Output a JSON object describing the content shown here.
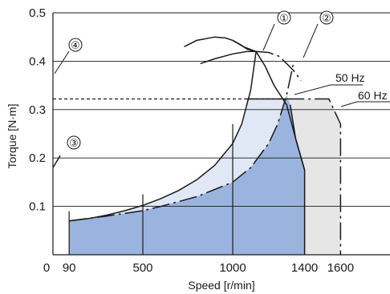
{
  "chart_data": {
    "type": "area",
    "title": "",
    "xlabel": "Speed [r/min]",
    "ylabel": "Torque [N·m]",
    "xlim": [
      0,
      1800
    ],
    "ylim": [
      0,
      0.5
    ],
    "x_ticks": [
      0,
      90,
      500,
      1000,
      1400,
      1600
    ],
    "x_tick_labels": [
      "0",
      "90",
      "500",
      "1000",
      "1400",
      "1600"
    ],
    "y_ticks": [
      0.1,
      0.2,
      0.3,
      0.4,
      0.5
    ],
    "y_tick_labels": [
      "0.1",
      "0.2",
      "0.3",
      "0.4",
      "0.5"
    ],
    "grid": "horizontal",
    "colors": {
      "continuous_region": "#9bb4df",
      "region_50hz": "#e0e7f5",
      "region_60hz": "#e6e6e6",
      "line": "#1a1a1a"
    },
    "series": [
      {
        "name": "",
        "label": "①",
        "style": "solid",
        "x": [
          730,
          800,
          900,
          960,
          1000,
          1040,
          1080,
          1130
        ],
        "y": [
          0.43,
          0.443,
          0.45,
          0.448,
          0.443,
          0.435,
          0.425,
          0.42
        ]
      },
      {
        "name": "",
        "label": "②",
        "style": "solid",
        "x": [
          820,
          900,
          1000,
          1080,
          1130
        ],
        "y": [
          0.395,
          0.405,
          0.415,
          0.42,
          0.42
        ]
      },
      {
        "name": "",
        "label": "①",
        "style": "solid",
        "x": [
          90,
          200,
          300,
          400,
          500,
          600,
          700,
          800,
          900,
          1000,
          1050,
          1100,
          1130
        ],
        "y": [
          0.07,
          0.075,
          0.082,
          0.091,
          0.102,
          0.116,
          0.133,
          0.155,
          0.185,
          0.23,
          0.27,
          0.34,
          0.42
        ]
      },
      {
        "name": "",
        "label": "①",
        "style": "solid",
        "x": [
          1000,
          1060,
          1130,
          1180,
          1230,
          1300,
          1350,
          1400
        ],
        "y": [
          0.443,
          0.43,
          0.42,
          0.39,
          0.35,
          0.31,
          0.24,
          0.175
        ]
      },
      {
        "name": "",
        "label": "②",
        "style": "dash-dot",
        "x": [
          90,
          300,
          500,
          600,
          700,
          800,
          900,
          1000,
          1100,
          1200,
          1250,
          1300,
          1340
        ],
        "y": [
          0.07,
          0.08,
          0.091,
          0.1,
          0.11,
          0.12,
          0.135,
          0.15,
          0.18,
          0.23,
          0.27,
          0.33,
          0.4
        ]
      },
      {
        "name": "",
        "label": "②",
        "style": "dash-dot",
        "x": [
          1130,
          1200,
          1260,
          1300,
          1340,
          1380
        ],
        "y": [
          0.42,
          0.418,
          0.41,
          0.395,
          0.38,
          0.36
        ]
      },
      {
        "name": "",
        "label": "③",
        "style": "solid",
        "x": [
          0,
          40
        ],
        "y": [
          0.18,
          0.205
        ]
      },
      {
        "name": "",
        "label": "④",
        "style": "dashed",
        "x": [
          0,
          1300
        ],
        "y": [
          0.322,
          0.322
        ]
      }
    ],
    "annotations": [
      {
        "text": "①",
        "x": 1170,
        "y": 0.47
      },
      {
        "text": "②",
        "x": 1435,
        "y": 0.47
      },
      {
        "text": "③",
        "x": 60,
        "y": 0.23
      },
      {
        "text": "④",
        "x": 70,
        "y": 0.433
      },
      {
        "text": "50 Hz",
        "x": 1450,
        "y": 0.335
      },
      {
        "text": "60 Hz",
        "x": 1670,
        "y": 0.317
      }
    ],
    "text": {
      "label_1": "①",
      "label_2": "②",
      "label_3": "③",
      "label_4": "④",
      "label_50hz": "50 Hz",
      "label_60hz": "60 Hz"
    }
  }
}
